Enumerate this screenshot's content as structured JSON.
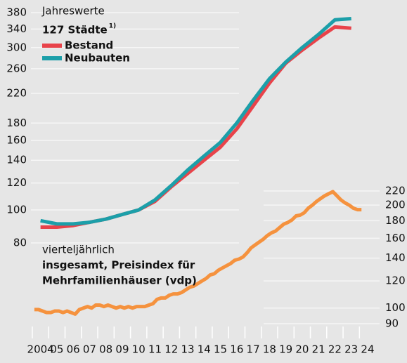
{
  "chart_data": [
    {
      "type": "line",
      "title": "Jahreswerte",
      "subtitle": "127 Städte",
      "footnote_mark": "1)",
      "log_scale": true,
      "grid": true,
      "xlim": [
        2004,
        2025
      ],
      "x": [
        2004.5,
        2005.5,
        2006.5,
        2007.5,
        2008.5,
        2009.5,
        2010.5,
        2011.5,
        2012.5,
        2013.5,
        2014.5,
        2015.5,
        2016.5,
        2017.5,
        2018.5,
        2019.5,
        2020.5,
        2021.5,
        2022.5,
        2023.5
      ],
      "ylim": [
        80,
        380
      ],
      "yticks": [
        80,
        100,
        120,
        140,
        160,
        180,
        220,
        260,
        300,
        340,
        380
      ],
      "series": [
        {
          "name": "Bestand",
          "color": "#e8434a",
          "values": [
            89,
            89,
            90,
            92,
            94,
            97,
            100,
            106,
            117,
            128,
            140,
            153,
            173,
            202,
            236,
            270,
            295,
            320,
            345,
            342
          ]
        },
        {
          "name": "Neubauten",
          "color": "#1c9fa9",
          "values": [
            93,
            91,
            91,
            92,
            94,
            97,
            100,
            107,
            118,
            131,
            144,
            158,
            180,
            210,
            243,
            272,
            300,
            328,
            362,
            365
          ]
        }
      ]
    },
    {
      "type": "line",
      "title": "vierteljährlich",
      "subtitle": [
        "insgesamt, Preisindex für",
        "Mehrfamilienhäuser (vdp)"
      ],
      "log_scale": true,
      "grid": true,
      "xlim": [
        2004,
        2025
      ],
      "xticks": [
        {
          "value": 2004,
          "label": "2004"
        },
        {
          "value": 2005,
          "label": "05"
        },
        {
          "value": 2006,
          "label": "06"
        },
        {
          "value": 2007,
          "label": "07"
        },
        {
          "value": 2008,
          "label": "08"
        },
        {
          "value": 2009,
          "label": "09"
        },
        {
          "value": 2010,
          "label": "10"
        },
        {
          "value": 2011,
          "label": "11"
        },
        {
          "value": 2012,
          "label": "12"
        },
        {
          "value": 2013,
          "label": "13"
        },
        {
          "value": 2014,
          "label": "14"
        },
        {
          "value": 2015,
          "label": "15"
        },
        {
          "value": 2016,
          "label": "16"
        },
        {
          "value": 2017,
          "label": "17"
        },
        {
          "value": 2018,
          "label": "18"
        },
        {
          "value": 2019,
          "label": "19"
        },
        {
          "value": 2020,
          "label": "20"
        },
        {
          "value": 2021,
          "label": "21"
        },
        {
          "value": 2022,
          "label": "22"
        },
        {
          "value": 2023,
          "label": "23"
        },
        {
          "value": 2024,
          "label": "24"
        }
      ],
      "x": [
        2004.125,
        2004.375,
        2004.625,
        2004.875,
        2005.125,
        2005.375,
        2005.625,
        2005.875,
        2006.125,
        2006.375,
        2006.625,
        2006.875,
        2007.125,
        2007.375,
        2007.625,
        2007.875,
        2008.125,
        2008.375,
        2008.625,
        2008.875,
        2009.125,
        2009.375,
        2009.625,
        2009.875,
        2010.125,
        2010.375,
        2010.625,
        2010.875,
        2011.125,
        2011.375,
        2011.625,
        2011.875,
        2012.125,
        2012.375,
        2012.625,
        2012.875,
        2013.125,
        2013.375,
        2013.625,
        2013.875,
        2014.125,
        2014.375,
        2014.625,
        2014.875,
        2015.125,
        2015.375,
        2015.625,
        2015.875,
        2016.125,
        2016.375,
        2016.625,
        2016.875,
        2017.125,
        2017.375,
        2017.625,
        2017.875,
        2018.125,
        2018.375,
        2018.625,
        2018.875,
        2019.125,
        2019.375,
        2019.625,
        2019.875,
        2020.125,
        2020.375,
        2020.625,
        2020.875,
        2021.125,
        2021.375,
        2021.625,
        2021.875,
        2022.125,
        2022.375,
        2022.625,
        2022.875,
        2023.125,
        2023.375,
        2023.625,
        2023.875,
        2024.125
      ],
      "y2lim": [
        90,
        220
      ],
      "y2ticks": [
        90,
        100,
        120,
        140,
        160,
        180,
        200,
        220
      ],
      "series": [
        {
          "name": "insgesamt",
          "color": "#f5923e",
          "axis": "y2",
          "values": [
            99,
            99,
            98,
            97,
            97,
            98,
            98,
            97,
            98,
            97,
            96,
            99,
            100,
            101,
            100,
            102,
            102,
            101,
            102,
            101,
            100,
            101,
            100,
            101,
            100,
            101,
            101,
            101,
            102,
            103,
            106,
            107,
            107,
            109,
            110,
            110,
            111,
            113,
            115,
            116,
            118,
            120,
            122,
            125,
            126,
            129,
            131,
            133,
            135,
            138,
            139,
            141,
            145,
            150,
            153,
            156,
            159,
            163,
            166,
            168,
            172,
            176,
            178,
            181,
            186,
            187,
            190,
            196,
            200,
            205,
            209,
            213,
            216,
            219,
            213,
            207,
            203,
            200,
            196,
            194,
            194
          ]
        }
      ]
    }
  ]
}
